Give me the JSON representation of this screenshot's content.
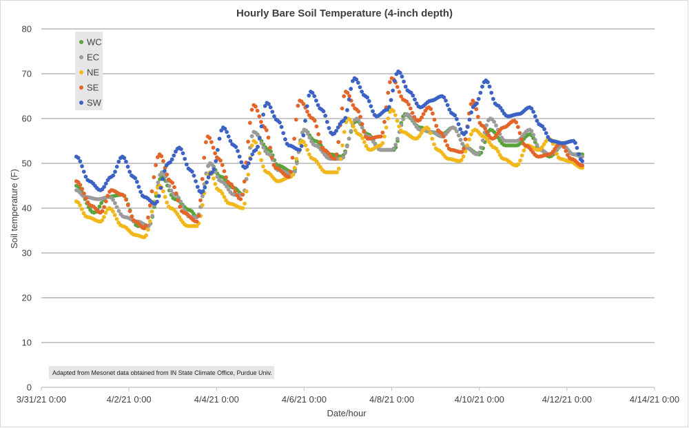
{
  "chart_data": {
    "type": "scatter",
    "title": "Hourly Bare Soil Temperature (4-inch depth)",
    "xlabel": "Date/hour",
    "ylabel": "Soil temperature (F)",
    "x_tick_labels": [
      "3/31/21 0:00",
      "4/2/21 0:00",
      "4/4/21 0:00",
      "4/6/21 0:00",
      "4/8/21 0:00",
      "4/10/21 0:00",
      "4/12/21 0:00",
      "4/14/21 0:00"
    ],
    "x_unit": "days after 3/31/21 0:00",
    "xlim": [
      0,
      14
    ],
    "ylim": [
      0,
      80
    ],
    "y_ticks": [
      0,
      10,
      20,
      30,
      40,
      50,
      60,
      70,
      80
    ],
    "grid": "horizontal",
    "legend_position": "top-left",
    "annotation": "Adapted from Mesonet data obtained from IN State Climate Office, Purdue Univ.",
    "series": [
      {
        "name": "WC",
        "color": "#5aa33c",
        "x": [
          0.8,
          1.2,
          1.5,
          1.85,
          2.2,
          2.45,
          2.75,
          3.05,
          3.4,
          3.55,
          3.85,
          4.1,
          4.4,
          4.6,
          4.85,
          5.2,
          5.4,
          5.75,
          6.0,
          6.25,
          6.6,
          6.85,
          7.2,
          7.45,
          7.75,
          8.05,
          8.3,
          8.65,
          8.9,
          9.15,
          9.4,
          9.7,
          10.0,
          10.25,
          10.6,
          10.85,
          11.15,
          11.4,
          11.6,
          11.9,
          12.15,
          12.35
        ],
        "y": [
          45,
          39,
          42.5,
          43,
          36,
          36,
          47,
          42,
          39.5,
          38,
          50,
          47,
          44.5,
          43,
          57,
          53,
          49.5,
          48,
          57.5,
          55,
          52,
          51.5,
          59.5,
          56.5,
          53,
          53,
          61,
          58,
          57,
          56.5,
          58,
          53.5,
          52,
          57.5,
          54,
          54,
          56.5,
          53,
          51.5,
          54,
          52,
          52
        ]
      },
      {
        "name": "EC",
        "color": "#9b9b9b",
        "x": [
          0.8,
          1.0,
          1.3,
          1.55,
          1.9,
          2.2,
          2.45,
          2.75,
          3.05,
          3.4,
          3.55,
          3.85,
          4.1,
          4.4,
          4.6,
          4.85,
          5.2,
          5.4,
          5.75,
          6.0,
          6.25,
          6.6,
          6.85,
          7.2,
          7.45,
          7.75,
          8.0,
          8.35,
          8.65,
          8.9,
          9.15,
          9.4,
          9.7,
          9.95,
          10.25,
          10.6,
          10.85,
          11.15,
          11.4,
          11.6,
          11.9,
          12.15,
          12.35
        ],
        "y": [
          44,
          42.5,
          42,
          42.5,
          38,
          37,
          36,
          48,
          43,
          38,
          38,
          50,
          46,
          43,
          43,
          57,
          52,
          48.5,
          47.5,
          57.5,
          54,
          51,
          51,
          60,
          56,
          53,
          53,
          61,
          57.5,
          57,
          56,
          58,
          53.5,
          52,
          60,
          55,
          55,
          57.5,
          53,
          52,
          54,
          52,
          51.5
        ]
      },
      {
        "name": "NE",
        "color": "#f2b81b",
        "x": [
          0.8,
          1.05,
          1.35,
          1.55,
          1.85,
          2.15,
          2.35,
          2.7,
          2.95,
          3.35,
          3.55,
          3.85,
          4.05,
          4.3,
          4.6,
          4.85,
          5.15,
          5.4,
          5.7,
          5.95,
          6.2,
          6.5,
          6.75,
          7.0,
          7.25,
          7.5,
          7.75,
          8.0,
          8.25,
          8.55,
          8.8,
          9.05,
          9.3,
          9.55,
          9.9,
          10.1,
          10.35,
          10.55,
          10.85,
          11.1,
          11.35,
          11.6,
          11.85,
          12.05,
          12.35
        ],
        "y": [
          41.5,
          38,
          37,
          40,
          36,
          34,
          33.5,
          45,
          40,
          36,
          36,
          48,
          44,
          41,
          40,
          55,
          48,
          46,
          47,
          55,
          51,
          48,
          48,
          60,
          56.5,
          53,
          54,
          62,
          57,
          55.5,
          58,
          53,
          51,
          50.5,
          57.5,
          56,
          53.5,
          51,
          49.5,
          54,
          53,
          55.5,
          51,
          50.5,
          49
        ]
      },
      {
        "name": "SE",
        "color": "#e4652a",
        "x": [
          0.8,
          1.15,
          1.35,
          1.6,
          1.85,
          2.15,
          2.35,
          2.7,
          2.95,
          3.25,
          3.55,
          3.8,
          4.05,
          4.3,
          4.55,
          4.85,
          5.1,
          5.35,
          5.65,
          5.9,
          6.2,
          6.45,
          6.7,
          6.95,
          7.2,
          7.45,
          7.75,
          8.0,
          8.3,
          8.6,
          8.85,
          9.1,
          9.35,
          9.6,
          9.85,
          10.05,
          10.3,
          10.55,
          10.8,
          11.05,
          11.35,
          11.6,
          11.85,
          12.1,
          12.35
        ],
        "y": [
          46,
          40.5,
          39,
          44,
          43,
          37,
          35.5,
          52,
          46,
          39,
          37,
          56,
          51,
          45.5,
          42,
          63,
          58,
          49,
          47,
          64,
          60,
          53,
          51,
          66,
          62,
          55.5,
          56,
          69,
          64,
          59.5,
          62.5,
          57,
          53,
          52.5,
          64,
          58.5,
          55.5,
          58,
          59.5,
          54,
          51.5,
          52,
          54.5,
          51,
          49.5
        ]
      },
      {
        "name": "SW",
        "color": "#3b62c4",
        "x": [
          0.8,
          1.1,
          1.35,
          1.6,
          1.85,
          2.1,
          2.35,
          2.6,
          2.9,
          3.15,
          3.4,
          3.65,
          3.9,
          4.15,
          4.4,
          4.65,
          4.9,
          5.15,
          5.4,
          5.65,
          5.9,
          6.15,
          6.4,
          6.65,
          6.9,
          7.15,
          7.4,
          7.65,
          7.9,
          8.15,
          8.4,
          8.65,
          8.9,
          9.15,
          9.4,
          9.65,
          9.9,
          10.15,
          10.4,
          10.65,
          10.9,
          11.15,
          11.4,
          11.65,
          11.9,
          12.15,
          12.35
        ],
        "y": [
          51.5,
          46,
          44,
          47,
          51.5,
          47,
          42.5,
          41,
          50,
          53.5,
          48.5,
          43.5,
          48,
          58,
          54,
          49,
          53,
          63.5,
          59.5,
          54,
          53,
          66,
          62,
          56.5,
          59.5,
          69,
          65,
          60.5,
          62,
          70.5,
          66,
          62.5,
          64,
          65,
          61,
          56.5,
          63,
          68.5,
          63,
          60.5,
          61,
          62.5,
          58.5,
          55,
          54.5,
          55,
          50.5
        ]
      }
    ]
  }
}
